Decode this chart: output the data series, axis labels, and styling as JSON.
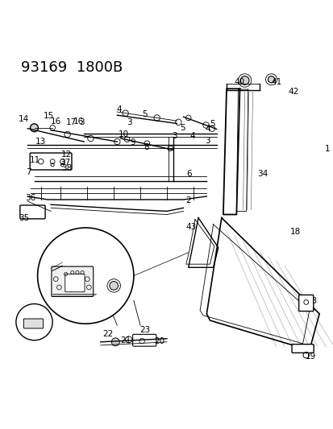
{
  "title": "93169  1800B",
  "bg_color": "#ffffff",
  "line_color": "#000000",
  "title_fontsize": 13,
  "label_fontsize": 7.5,
  "fig_width": 4.14,
  "fig_height": 5.33,
  "dpi": 100
}
